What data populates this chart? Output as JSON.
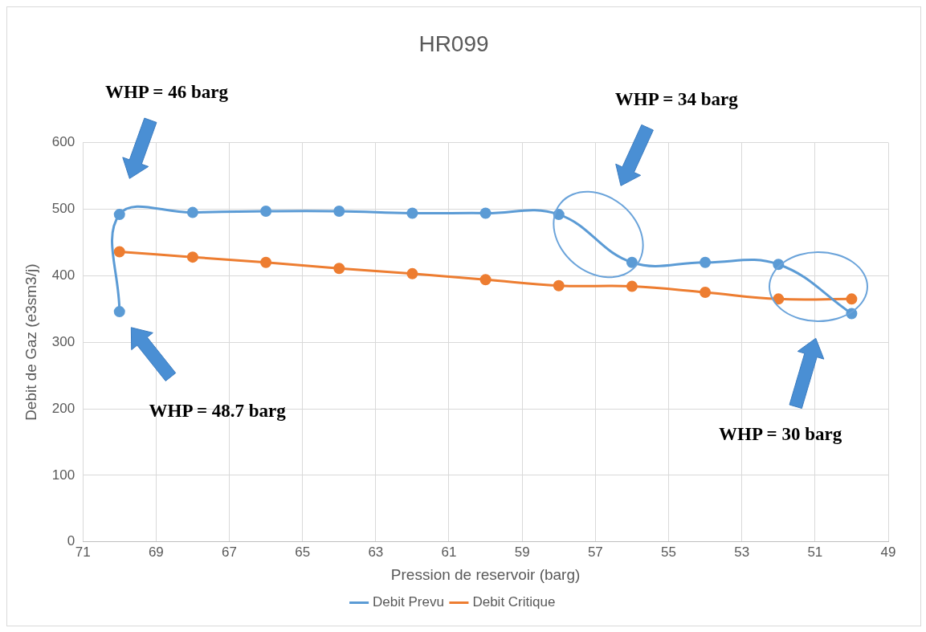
{
  "chart_data": {
    "type": "line",
    "title": "HR099",
    "xlabel": "Pression de reservoir (barg)",
    "ylabel": "Debit de Gaz (e3sm3/j)",
    "xlim": [
      71,
      49
    ],
    "xticks": [
      71,
      69,
      67,
      65,
      63,
      61,
      59,
      57,
      55,
      53,
      51,
      49
    ],
    "ylim": [
      0,
      600
    ],
    "yticks": [
      0,
      100,
      200,
      300,
      400,
      500,
      600
    ],
    "grid": true,
    "legend": "bottom",
    "marker": "circle",
    "series": [
      {
        "name": "Debit Prevu",
        "color": "#5b9bd5",
        "x": [
          70,
          70,
          68,
          66,
          64,
          62,
          60,
          58,
          56,
          54,
          52,
          50
        ],
        "values": [
          346,
          492,
          495,
          497,
          497,
          494,
          494,
          492,
          420,
          420,
          417,
          343
        ]
      },
      {
        "name": "Debit Critique",
        "color": "#ed7d31",
        "x": [
          70,
          68,
          66,
          64,
          62,
          60,
          58,
          56,
          54,
          52,
          50
        ],
        "values": [
          436,
          428,
          420,
          411,
          403,
          394,
          385,
          384,
          375,
          365,
          365
        ]
      }
    ],
    "annotations": [
      "WHP = 46 barg",
      "WHP = 48.7 barg",
      "WHP = 34 barg",
      "WHP = 30 barg"
    ]
  }
}
